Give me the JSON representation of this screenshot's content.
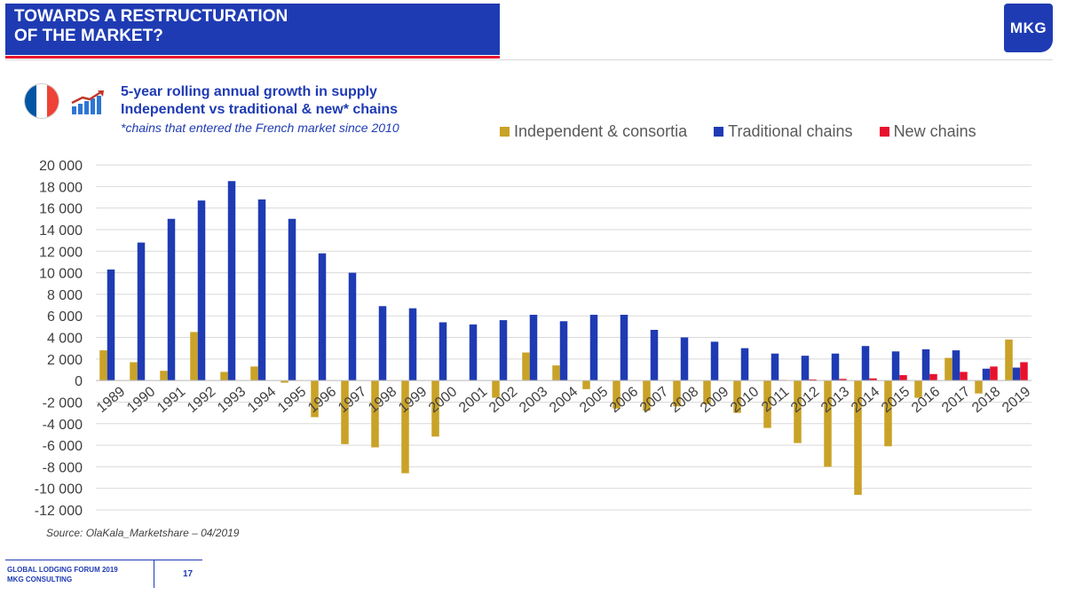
{
  "header": {
    "title_line1": "TOWARDS A RESTRUCTURATION",
    "title_line2": "OF THE MARKET?",
    "logo_text": "MKG"
  },
  "icons": {
    "flag": "france-flag-icon",
    "growth": "growth-chart-icon",
    "flag_colors": [
      "#0055a4",
      "#ffffff",
      "#ef4135"
    ]
  },
  "subtitle": {
    "line1": "5-year rolling annual growth in supply",
    "line2": "Independent vs traditional & new* chains",
    "footnote": "*chains that entered the French market since 2010"
  },
  "source": "Source: OlaKala_Marketshare – 04/2019",
  "footer": {
    "line1": "GLOBAL LODGING FORUM 2019",
    "line2": "MKG CONSULTING",
    "page": "17"
  },
  "chart_data": {
    "type": "bar",
    "categories": [
      "1989",
      "1990",
      "1991",
      "1992",
      "1993",
      "1994",
      "1995",
      "1996",
      "1997",
      "1998",
      "1999",
      "2000",
      "2001",
      "2002",
      "2003",
      "2004",
      "2005",
      "2006",
      "2007",
      "2008",
      "2009",
      "2010",
      "2011",
      "2012",
      "2013",
      "2014",
      "2015",
      "2016",
      "2017",
      "2018",
      "2019"
    ],
    "series": [
      {
        "name": "Independent & consortia",
        "color": "#c9a227",
        "values": [
          2800,
          1700,
          900,
          4500,
          800,
          1300,
          -200,
          -3400,
          -5900,
          -6200,
          -8600,
          -5200,
          0,
          -1600,
          2600,
          1400,
          -800,
          -2600,
          -2800,
          -2400,
          -2200,
          -3000,
          -4400,
          -5800,
          -8000,
          -10600,
          -6100,
          -1600,
          2100,
          -1200,
          3800
        ]
      },
      {
        "name": "Traditional chains",
        "color": "#1f3bb3",
        "values": [
          10300,
          12800,
          15000,
          16700,
          18500,
          16800,
          15000,
          11800,
          10000,
          6900,
          6700,
          5400,
          5200,
          5600,
          6100,
          5500,
          6100,
          6100,
          4700,
          4000,
          3600,
          3000,
          2500,
          2300,
          2500,
          3200,
          2700,
          2900,
          2800,
          1100,
          1200
        ]
      },
      {
        "name": "New chains",
        "color": "#e8112d",
        "values": [
          0,
          0,
          0,
          0,
          0,
          0,
          0,
          0,
          0,
          0,
          0,
          0,
          0,
          0,
          0,
          0,
          0,
          0,
          0,
          0,
          0,
          0,
          50,
          100,
          150,
          200,
          500,
          600,
          800,
          1300,
          1700
        ]
      }
    ],
    "ylim": [
      -12000,
      20000
    ],
    "yticks": [
      20000,
      18000,
      16000,
      14000,
      12000,
      10000,
      8000,
      6000,
      4000,
      2000,
      0,
      -2000,
      -4000,
      -6000,
      -8000,
      -10000,
      -12000
    ],
    "ytick_labels": [
      "20 000",
      "18 000",
      "16 000",
      "14 000",
      "12 000",
      "10 000",
      "8 000",
      "6 000",
      "4 000",
      "2 000",
      "0",
      "-2 000",
      "-4 000",
      "-6 000",
      "-8 000",
      "-10 000",
      "-12 000"
    ],
    "grid": true,
    "legend": "top-right"
  }
}
